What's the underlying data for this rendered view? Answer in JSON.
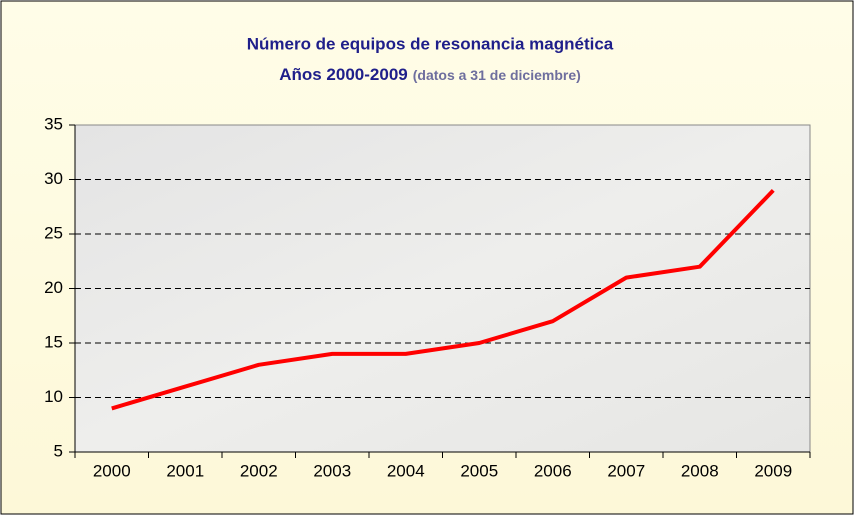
{
  "chart_data": {
    "type": "line",
    "title": "Número de equipos de resonancia magnética",
    "subtitle": "Años 2000-2009",
    "note": "(datos a 31 de diciembre)",
    "categories": [
      "2000",
      "2001",
      "2002",
      "2003",
      "2004",
      "2005",
      "2006",
      "2007",
      "2008",
      "2009"
    ],
    "values": [
      9,
      11,
      13,
      14,
      14,
      15,
      17,
      21,
      22,
      29
    ],
    "color": "#ff0000",
    "ylim": [
      5,
      35
    ],
    "yticks": [
      5,
      10,
      15,
      20,
      25,
      30,
      35
    ],
    "grid": true
  }
}
